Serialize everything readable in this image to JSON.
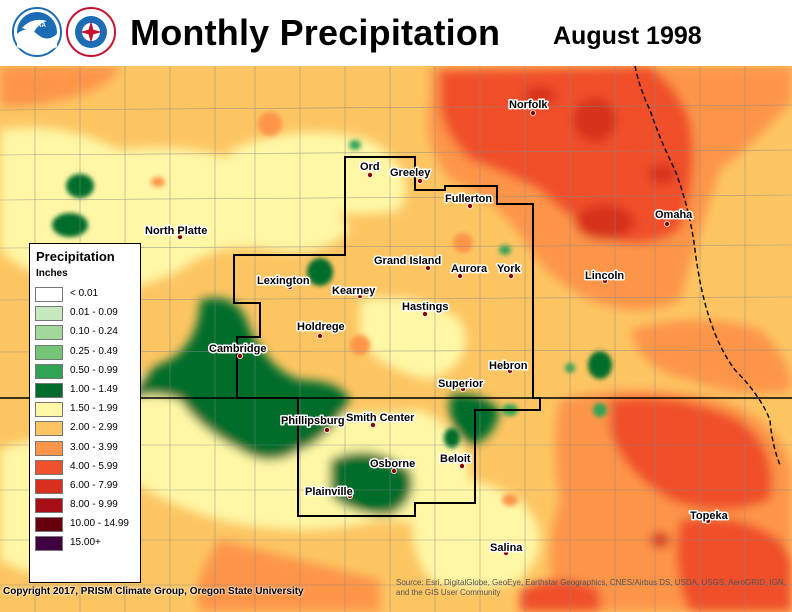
{
  "header": {
    "title": "Monthly Precipitation",
    "date": "August 1998",
    "logos": [
      {
        "name": "noaa-logo",
        "text": "NOAA",
        "color": "#1c6cb5"
      },
      {
        "name": "nws-logo",
        "text": "NATIONAL WEATHER SERVICE",
        "color": "#c8102e"
      }
    ]
  },
  "legend": {
    "title": "Precipitation",
    "units": "Inches",
    "items": [
      {
        "label": "< 0.01",
        "color": "#ffffff"
      },
      {
        "label": "0.01 - 0.09",
        "color": "#c7e9c0"
      },
      {
        "label": "0.10 - 0.24",
        "color": "#a1d99b"
      },
      {
        "label": "0.25 - 0.49",
        "color": "#74c476"
      },
      {
        "label": "0.50 - 0.99",
        "color": "#31a354"
      },
      {
        "label": "1.00 - 1.49",
        "color": "#006d2c"
      },
      {
        "label": "1.50 - 1.99",
        "color": "#fff7a6"
      },
      {
        "label": "2.00 - 2.99",
        "color": "#fdc562"
      },
      {
        "label": "3.00 - 3.99",
        "color": "#fd9548"
      },
      {
        "label": "4.00 - 5.99",
        "color": "#f0502b"
      },
      {
        "label": "6.00 - 7.99",
        "color": "#d7301f"
      },
      {
        "label": "8.00 - 9.99",
        "color": "#a50f15"
      },
      {
        "label": "10.00 - 14.99",
        "color": "#67000d"
      },
      {
        "label": "15.00+",
        "color": "#3f0040"
      }
    ]
  },
  "cities": [
    {
      "name": "Norfolk"
    },
    {
      "name": "Ord"
    },
    {
      "name": "Greeley"
    },
    {
      "name": "Fullerton"
    },
    {
      "name": "Omaha"
    },
    {
      "name": "North Platte"
    },
    {
      "name": "Grand Island"
    },
    {
      "name": "Aurora"
    },
    {
      "name": "York"
    },
    {
      "name": "Lincoln"
    },
    {
      "name": "Lexington"
    },
    {
      "name": "Kearney"
    },
    {
      "name": "Hastings"
    },
    {
      "name": "Holdrege"
    },
    {
      "name": "Cambridge"
    },
    {
      "name": "Hebron"
    },
    {
      "name": "Superior"
    },
    {
      "name": "Phillipsburg"
    },
    {
      "name": "Smith Center"
    },
    {
      "name": "Osborne"
    },
    {
      "name": "Beloit"
    },
    {
      "name": "Plainville"
    },
    {
      "name": "Topeka"
    },
    {
      "name": "Salina"
    }
  ],
  "footer": {
    "copyright": "Copyright 2017, PRISM Climate Group, Oregon State University",
    "source": "Source: Esri, DigitalGlobe, GeoEye, Earthstar Geographics, CNES/Airbus DS, USDA, USGS, AeroGRID, IGN, and the GIS User Community"
  }
}
